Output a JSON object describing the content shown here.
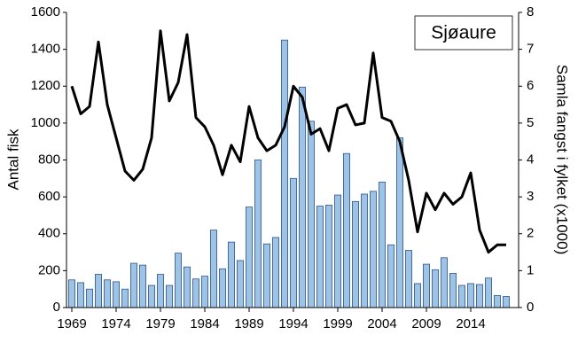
{
  "chart_data": {
    "type": "bar-line",
    "annotation": "Sjøaure",
    "y_label": "Antal fisk",
    "y2_label": "Samla fangst i fylket (x1000)",
    "x": [
      1969,
      1970,
      1971,
      1972,
      1973,
      1974,
      1975,
      1976,
      1977,
      1978,
      1979,
      1980,
      1981,
      1982,
      1983,
      1984,
      1985,
      1986,
      1987,
      1988,
      1989,
      1990,
      1991,
      1992,
      1993,
      1994,
      1995,
      1996,
      1997,
      1998,
      1999,
      2000,
      2001,
      2002,
      2003,
      2004,
      2005,
      2006,
      2007,
      2008,
      2009,
      2010,
      2011,
      2012,
      2013,
      2014,
      2015,
      2016,
      2017,
      2018
    ],
    "xlim": [
      1968.4,
      2019.4
    ],
    "xticks": [
      1969,
      1974,
      1979,
      1984,
      1989,
      1994,
      1999,
      2004,
      2009,
      2014
    ],
    "ylim": [
      0,
      1600
    ],
    "yticks": [
      0,
      200,
      400,
      600,
      800,
      1000,
      1200,
      1400,
      1600
    ],
    "y2lim": [
      0,
      8
    ],
    "y2ticks": [
      0,
      1,
      2,
      3,
      4,
      5,
      6,
      7,
      8
    ],
    "series": [
      {
        "type": "bar",
        "color": "#9dc3e6",
        "values": [
          150,
          135,
          100,
          180,
          150,
          140,
          100,
          240,
          230,
          120,
          180,
          120,
          295,
          220,
          155,
          170,
          420,
          210,
          355,
          255,
          545,
          800,
          345,
          380,
          1450,
          700,
          1195,
          1010,
          550,
          555,
          610,
          835,
          575,
          615,
          630,
          680,
          340,
          920,
          310,
          130,
          235,
          205,
          270,
          185,
          120,
          130,
          125,
          160,
          65,
          60
        ]
      },
      {
        "type": "line",
        "axis": "y2",
        "color": "#000000",
        "values": [
          6.0,
          5.25,
          5.45,
          7.2,
          5.5,
          4.6,
          3.7,
          3.45,
          3.75,
          4.6,
          7.5,
          5.6,
          6.1,
          7.4,
          5.15,
          4.9,
          4.4,
          3.6,
          4.4,
          3.95,
          5.45,
          4.6,
          4.25,
          4.4,
          4.9,
          6.0,
          5.7,
          4.7,
          4.85,
          4.25,
          5.4,
          5.5,
          4.95,
          5.0,
          6.9,
          5.15,
          5.05,
          4.5,
          3.45,
          2.05,
          3.1,
          2.65,
          3.1,
          2.8,
          3.0,
          3.65,
          2.1,
          1.5,
          1.7,
          1.7
        ]
      }
    ]
  }
}
